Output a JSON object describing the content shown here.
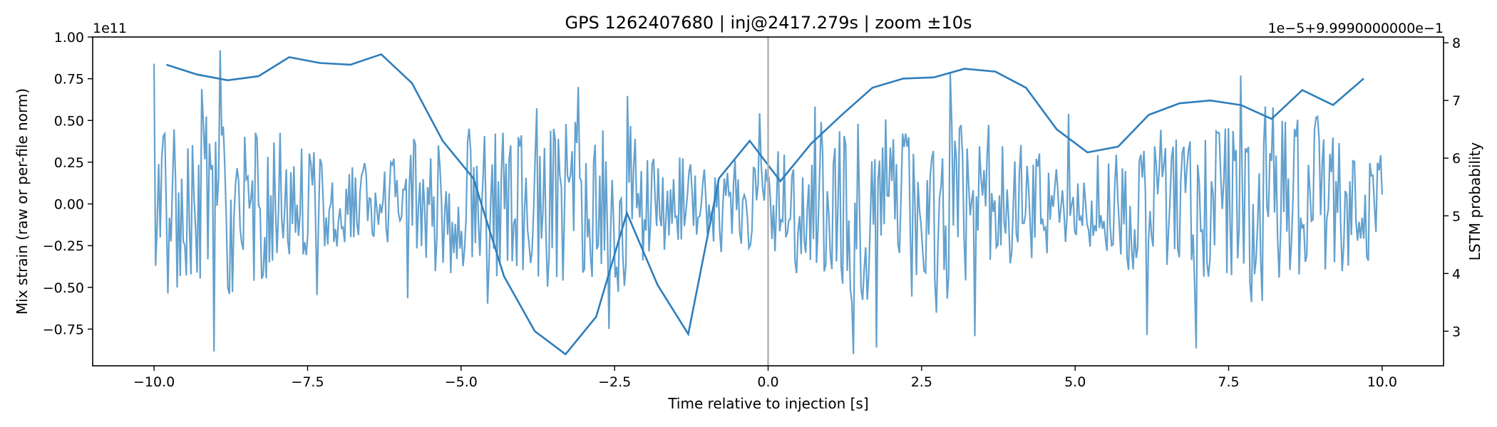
{
  "chart_data": {
    "type": "line",
    "title": "GPS 1262407680 | inj@2417.279s | zoom ±10s",
    "xlabel": "Time relative to injection [s]",
    "ylabel_left": "Mix strain (raw or per-file norm)",
    "ylabel_right": "LSTM probability",
    "offset_left": "1e11",
    "offset_right": "1e−5+9.9990000000e−1",
    "xlim": [
      -11.0,
      11.0
    ],
    "ylim_left": [
      -0.97,
      1.0
    ],
    "ylim_right": [
      2.4,
      8.1
    ],
    "x_ticks": [
      -10,
      -7.5,
      -5,
      -2.5,
      0,
      2.5,
      5,
      7.5,
      10
    ],
    "x_tick_labels": [
      "−10.0",
      "−7.5",
      "−5.0",
      "−2.5",
      "0.0",
      "2.5",
      "5.0",
      "7.5",
      "10.0"
    ],
    "y_left_ticks": [
      1.0,
      0.75,
      0.5,
      0.25,
      0.0,
      -0.25,
      -0.5,
      -0.75
    ],
    "y_left_tick_labels": [
      "1.00",
      "0.75",
      "0.50",
      "0.25",
      "0.00",
      "−0.25",
      "−0.50",
      "−0.75"
    ],
    "y_right_ticks": [
      8,
      7,
      6,
      5,
      4,
      3
    ],
    "y_right_tick_labels": [
      "8",
      "7",
      "6",
      "5",
      "4",
      "3"
    ],
    "injection_marker_x": 0,
    "strain_series": {
      "name": "Mix strain",
      "color": "#5b9ccb",
      "sample_count": 800,
      "x_range": [
        -10.0,
        10.0
      ],
      "note": "noisy oscillating strain signal, amplitude envelope approx ±0.5–0.9 (x1e11)"
    },
    "lstm_series": {
      "name": "LSTM probability",
      "color": "#2e7ebc",
      "x": [
        -9.8,
        -9.3,
        -8.8,
        -8.3,
        -7.8,
        -7.3,
        -6.8,
        -6.3,
        -5.8,
        -5.3,
        -4.8,
        -4.3,
        -3.8,
        -3.3,
        -2.8,
        -2.3,
        -1.8,
        -1.3,
        -0.8,
        -0.3,
        0.2,
        0.7,
        1.2,
        1.7,
        2.2,
        2.7,
        3.2,
        3.7,
        4.2,
        4.7,
        5.2,
        5.7,
        6.2,
        6.7,
        7.2,
        7.7,
        8.2,
        8.7,
        9.2,
        9.7
      ],
      "values": [
        7.62,
        7.45,
        7.35,
        7.42,
        7.75,
        7.65,
        7.62,
        7.8,
        7.3,
        6.3,
        5.65,
        3.95,
        3.0,
        2.6,
        3.25,
        5.05,
        3.8,
        2.95,
        5.65,
        6.3,
        5.6,
        6.25,
        6.75,
        7.22,
        7.38,
        7.4,
        7.55,
        7.5,
        7.22,
        6.5,
        6.1,
        6.2,
        6.75,
        6.95,
        7.0,
        6.92,
        6.68,
        7.18,
        6.92,
        7.38
      ]
    }
  }
}
